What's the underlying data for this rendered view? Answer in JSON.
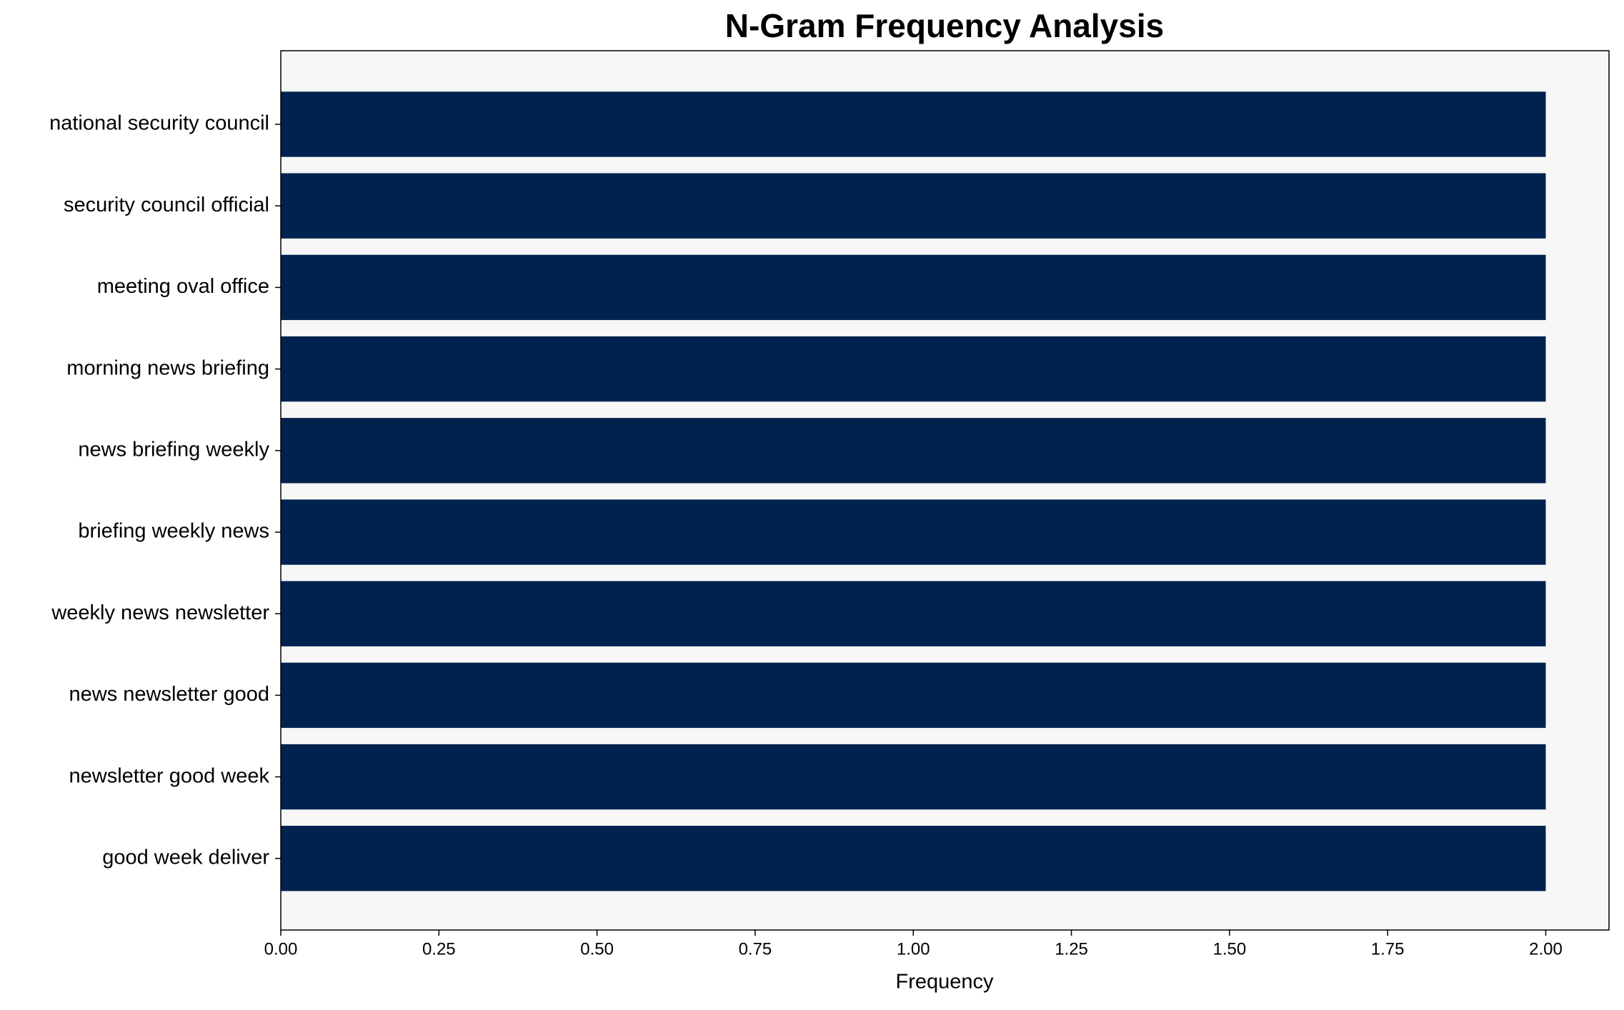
{
  "chart_data": {
    "type": "barh",
    "title": "N-Gram Frequency Analysis",
    "xlabel": "Frequency",
    "categories": [
      "national security council",
      "security council official",
      "meeting oval office",
      "morning news briefing",
      "news briefing weekly",
      "briefing weekly news",
      "weekly news newsletter",
      "news newsletter good",
      "newsletter good week",
      "good week deliver"
    ],
    "values": [
      2,
      2,
      2,
      2,
      2,
      2,
      2,
      2,
      2,
      2
    ],
    "color": "#00224e",
    "plot_background": "#f7f7f7",
    "grid": false,
    "xlim": [
      0,
      2.1
    ],
    "xticks": [
      {
        "value": 0,
        "label": "0.00"
      },
      {
        "value": 0.25,
        "label": "0.25"
      },
      {
        "value": 0.5,
        "label": "0.50"
      },
      {
        "value": 0.75,
        "label": "0.75"
      },
      {
        "value": 1,
        "label": "1.00"
      },
      {
        "value": 1.25,
        "label": "1.25"
      },
      {
        "value": 1.5,
        "label": "1.50"
      },
      {
        "value": 1.75,
        "label": "1.75"
      },
      {
        "value": 2,
        "label": "2.00"
      }
    ]
  }
}
